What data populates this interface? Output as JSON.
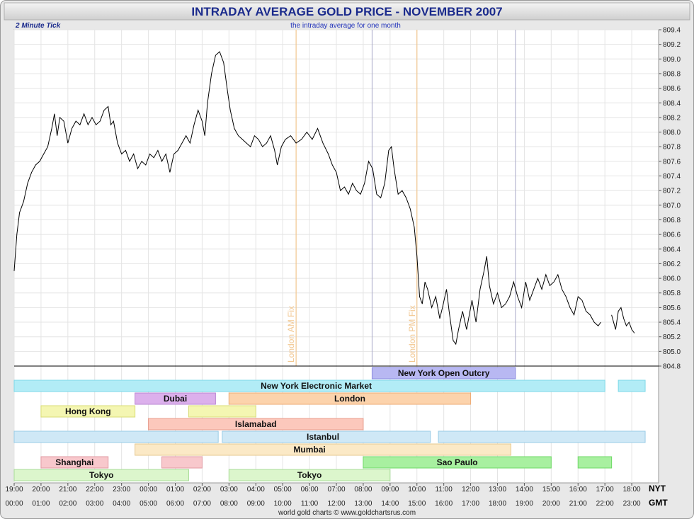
{
  "chart_data": {
    "type": "line",
    "title": "INTRADAY AVERAGE GOLD PRICE - NOVEMBER 2007",
    "subtitle": "the intraday average for one month",
    "tick_label": "2 Minute Tick",
    "credit": "world gold charts © www.goldchartsrus.com",
    "ylim": [
      804.8,
      809.4
    ],
    "y_ticks": [
      "809.4",
      "809.2",
      "809.0",
      "808.8",
      "808.6",
      "808.4",
      "808.2",
      "808.0",
      "807.8",
      "807.6",
      "807.4",
      "807.2",
      "807.0",
      "806.8",
      "806.6",
      "806.4",
      "806.2",
      "806.0",
      "805.8",
      "805.6",
      "805.4",
      "805.2",
      "805.0",
      "804.8"
    ],
    "x_ticks_nyt": [
      "19:00",
      "20:00",
      "21:00",
      "22:00",
      "23:00",
      "00:00",
      "01:00",
      "02:00",
      "03:00",
      "04:00",
      "05:00",
      "06:00",
      "07:00",
      "08:00",
      "09:00",
      "10:00",
      "11:00",
      "12:00",
      "13:00",
      "14:00",
      "15:00",
      "16:00",
      "17:00",
      "18:00"
    ],
    "x_ticks_gmt": [
      "00:00",
      "01:00",
      "02:00",
      "03:00",
      "04:00",
      "05:00",
      "06:00",
      "07:00",
      "08:00",
      "09:00",
      "10:00",
      "11:00",
      "12:00",
      "13:00",
      "14:00",
      "15:00",
      "16:00",
      "17:00",
      "18:00",
      "19:00",
      "20:00",
      "21:00",
      "22:00",
      "23:00"
    ],
    "timezone_labels": {
      "nyt": "NYT",
      "gmt": "GMT"
    },
    "fixes": [
      {
        "label": "London AM Fix",
        "gmt": 10.5,
        "color": "#f2c790"
      },
      {
        "label": "London PM Fix",
        "gmt": 15.0,
        "color": "#f2c790"
      }
    ],
    "session_lines_gmt": [
      13.33,
      18.67
    ],
    "series": [
      {
        "points": [
          [
            0.0,
            806.1
          ],
          [
            0.1,
            806.6
          ],
          [
            0.2,
            806.9
          ],
          [
            0.35,
            807.05
          ],
          [
            0.5,
            807.3
          ],
          [
            0.65,
            807.45
          ],
          [
            0.8,
            807.55
          ],
          [
            0.95,
            807.6
          ],
          [
            1.1,
            807.7
          ],
          [
            1.25,
            807.8
          ],
          [
            1.4,
            808.05
          ],
          [
            1.5,
            808.25
          ],
          [
            1.6,
            807.95
          ],
          [
            1.7,
            808.2
          ],
          [
            1.85,
            808.15
          ],
          [
            2.0,
            807.85
          ],
          [
            2.15,
            808.05
          ],
          [
            2.3,
            808.15
          ],
          [
            2.45,
            808.1
          ],
          [
            2.6,
            808.25
          ],
          [
            2.75,
            808.1
          ],
          [
            2.9,
            808.2
          ],
          [
            3.05,
            808.1
          ],
          [
            3.2,
            808.15
          ],
          [
            3.35,
            808.3
          ],
          [
            3.5,
            808.35
          ],
          [
            3.6,
            808.1
          ],
          [
            3.7,
            808.15
          ],
          [
            3.85,
            807.85
          ],
          [
            4.0,
            807.7
          ],
          [
            4.15,
            807.75
          ],
          [
            4.3,
            807.6
          ],
          [
            4.45,
            807.7
          ],
          [
            4.6,
            807.5
          ],
          [
            4.75,
            807.6
          ],
          [
            4.9,
            807.55
          ],
          [
            5.05,
            807.7
          ],
          [
            5.2,
            807.65
          ],
          [
            5.35,
            807.75
          ],
          [
            5.5,
            807.6
          ],
          [
            5.65,
            807.7
          ],
          [
            5.8,
            807.45
          ],
          [
            5.95,
            807.7
          ],
          [
            6.1,
            807.75
          ],
          [
            6.25,
            807.85
          ],
          [
            6.4,
            807.95
          ],
          [
            6.55,
            807.85
          ],
          [
            6.7,
            808.1
          ],
          [
            6.85,
            808.3
          ],
          [
            7.0,
            808.15
          ],
          [
            7.1,
            807.95
          ],
          [
            7.2,
            808.4
          ],
          [
            7.35,
            808.8
          ],
          [
            7.5,
            809.05
          ],
          [
            7.65,
            809.1
          ],
          [
            7.8,
            808.95
          ],
          [
            7.95,
            808.55
          ],
          [
            8.05,
            808.3
          ],
          [
            8.2,
            808.05
          ],
          [
            8.35,
            807.95
          ],
          [
            8.5,
            807.9
          ],
          [
            8.65,
            807.85
          ],
          [
            8.8,
            807.8
          ],
          [
            8.95,
            807.95
          ],
          [
            9.1,
            807.9
          ],
          [
            9.25,
            807.8
          ],
          [
            9.4,
            807.85
          ],
          [
            9.55,
            807.95
          ],
          [
            9.7,
            807.75
          ],
          [
            9.8,
            807.55
          ],
          [
            9.95,
            807.8
          ],
          [
            10.1,
            807.9
          ],
          [
            10.3,
            807.95
          ],
          [
            10.5,
            807.85
          ],
          [
            10.7,
            807.9
          ],
          [
            10.9,
            808.0
          ],
          [
            11.1,
            807.9
          ],
          [
            11.3,
            808.05
          ],
          [
            11.5,
            807.85
          ],
          [
            11.7,
            807.7
          ],
          [
            11.85,
            807.55
          ],
          [
            12.0,
            807.45
          ],
          [
            12.15,
            807.2
          ],
          [
            12.3,
            807.25
          ],
          [
            12.45,
            807.15
          ],
          [
            12.6,
            807.3
          ],
          [
            12.75,
            807.2
          ],
          [
            12.9,
            807.15
          ],
          [
            13.05,
            807.3
          ],
          [
            13.2,
            807.6
          ],
          [
            13.35,
            807.5
          ],
          [
            13.5,
            807.15
          ],
          [
            13.65,
            807.1
          ],
          [
            13.8,
            807.3
          ],
          [
            13.95,
            807.75
          ],
          [
            14.05,
            807.8
          ],
          [
            14.15,
            807.5
          ],
          [
            14.3,
            807.15
          ],
          [
            14.45,
            807.2
          ],
          [
            14.6,
            807.1
          ],
          [
            14.75,
            806.95
          ],
          [
            14.9,
            806.7
          ],
          [
            15.0,
            806.3
          ],
          [
            15.1,
            805.75
          ],
          [
            15.2,
            805.65
          ],
          [
            15.3,
            805.95
          ],
          [
            15.4,
            805.85
          ],
          [
            15.55,
            805.6
          ],
          [
            15.7,
            805.75
          ],
          [
            15.85,
            805.45
          ],
          [
            15.95,
            805.6
          ],
          [
            16.1,
            805.85
          ],
          [
            16.2,
            805.55
          ],
          [
            16.35,
            805.15
          ],
          [
            16.45,
            805.1
          ],
          [
            16.55,
            805.3
          ],
          [
            16.7,
            805.55
          ],
          [
            16.85,
            805.3
          ],
          [
            16.95,
            805.5
          ],
          [
            17.05,
            805.7
          ],
          [
            17.2,
            805.4
          ],
          [
            17.35,
            805.85
          ],
          [
            17.5,
            806.1
          ],
          [
            17.6,
            806.3
          ],
          [
            17.7,
            805.9
          ],
          [
            17.85,
            805.65
          ],
          [
            18.0,
            805.8
          ],
          [
            18.15,
            805.6
          ],
          [
            18.3,
            805.65
          ],
          [
            18.45,
            805.75
          ],
          [
            18.6,
            805.95
          ],
          [
            18.75,
            805.75
          ],
          [
            18.9,
            805.6
          ],
          [
            19.05,
            805.95
          ],
          [
            19.2,
            805.7
          ],
          [
            19.35,
            805.85
          ],
          [
            19.5,
            806.0
          ],
          [
            19.65,
            805.85
          ],
          [
            19.8,
            806.05
          ],
          [
            19.95,
            805.9
          ],
          [
            20.1,
            805.95
          ],
          [
            20.25,
            806.05
          ],
          [
            20.4,
            805.85
          ],
          [
            20.55,
            805.75
          ],
          [
            20.7,
            805.6
          ],
          [
            20.85,
            805.5
          ],
          [
            21.0,
            805.75
          ],
          [
            21.15,
            805.7
          ],
          [
            21.3,
            805.55
          ],
          [
            21.45,
            805.5
          ],
          [
            21.6,
            805.4
          ],
          [
            21.75,
            805.35
          ],
          [
            21.85,
            805.4
          ],
          null,
          [
            22.25,
            805.5
          ],
          [
            22.4,
            805.3
          ],
          [
            22.5,
            805.55
          ],
          [
            22.6,
            805.6
          ],
          [
            22.7,
            805.45
          ],
          [
            22.8,
            805.35
          ],
          [
            22.9,
            805.4
          ],
          [
            23.0,
            805.3
          ],
          [
            23.1,
            805.25
          ]
        ]
      }
    ],
    "zones": [
      {
        "name": "New York Open Outcry",
        "rows": 0,
        "segments": [
          [
            13.33,
            18.67
          ]
        ],
        "label_at": 16.0,
        "fill": "#b8b8f2",
        "stroke": "#8c8ce0"
      },
      {
        "name": "New York Electronic Market",
        "rows": 1,
        "segments": [
          [
            0,
            22.0
          ],
          [
            22.5,
            23.5
          ]
        ],
        "label_at": 11.25,
        "fill": "#b2ecf6",
        "stroke": "#7dd8e8"
      },
      {
        "name": "Dubai",
        "rows": 2,
        "segments": [
          [
            4.5,
            7.5
          ]
        ],
        "label_at": 6.0,
        "fill": "#dcb0ec",
        "stroke": "#b985d2"
      },
      {
        "name": "London",
        "rows": 2,
        "segments": [
          [
            8.0,
            17.0
          ]
        ],
        "label_at": 12.5,
        "fill": "#fcd3ac",
        "stroke": "#eeab73"
      },
      {
        "name": "Hong Kong",
        "rows": 3,
        "segments": [
          [
            1.0,
            4.5
          ],
          [
            6.5,
            9.0
          ]
        ],
        "label_at": 2.75,
        "fill": "#f4f6b2",
        "stroke": "#d8dc75"
      },
      {
        "name": "Islamabad",
        "rows": 4,
        "segments": [
          [
            5.0,
            13.0
          ]
        ],
        "label_at": 9.0,
        "fill": "#fcc8bc",
        "stroke": "#e89c8c"
      },
      {
        "name": "Istanbul",
        "rows": 5,
        "segments": [
          [
            0,
            7.6
          ],
          [
            7.75,
            15.5
          ],
          [
            15.8,
            23.5
          ]
        ],
        "label_at": 11.5,
        "fill": "#cfe8f6",
        "stroke": "#98cbe6"
      },
      {
        "name": "Mumbai",
        "rows": 6,
        "segments": [
          [
            4.5,
            18.5
          ]
        ],
        "label_at": 11.0,
        "fill": "#fbe9c6",
        "stroke": "#e6c88e"
      },
      {
        "name": "Shanghai",
        "rows": 7,
        "segments": [
          [
            1.0,
            3.5
          ],
          [
            5.5,
            7.0
          ]
        ],
        "label_at": 2.25,
        "fill": "#f8c8cc",
        "stroke": "#e29aa2"
      },
      {
        "name": "Sao Paulo",
        "rows": 7,
        "segments": [
          [
            13.0,
            20.0
          ],
          [
            21.0,
            22.25
          ]
        ],
        "label_at": 16.5,
        "fill": "#a8f0a0",
        "stroke": "#6ed866"
      },
      {
        "name": "Tokyo",
        "rows": 8,
        "segments": [
          [
            0,
            6.5
          ]
        ],
        "label_at": 3.25,
        "fill": "#dcf6cc",
        "stroke": "#a8dc98"
      },
      {
        "name": "Tokyo",
        "rows": 8,
        "segments": [
          [
            8.0,
            14.0
          ]
        ],
        "label_at": 11.0,
        "fill": "#dcf6cc",
        "stroke": "#a8dc98"
      }
    ]
  }
}
